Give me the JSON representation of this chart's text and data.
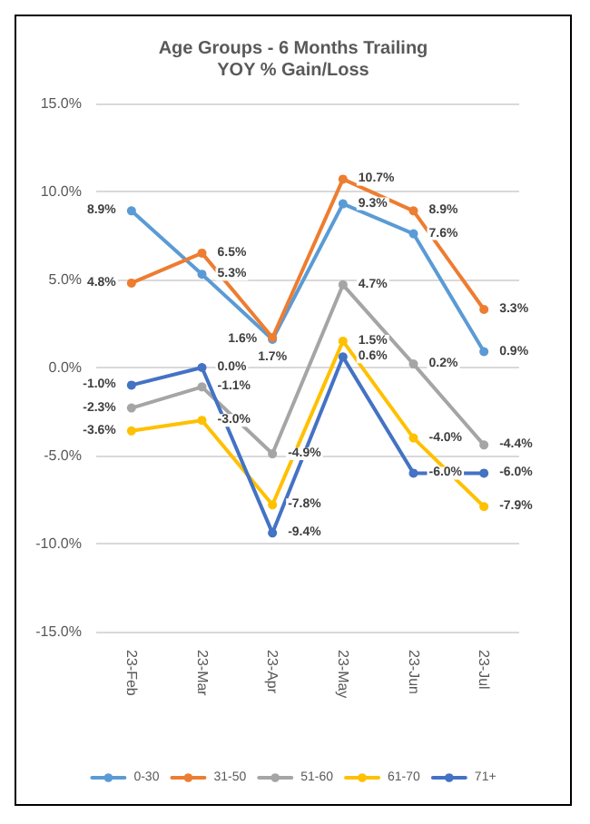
{
  "chart_data": {
    "type": "line",
    "title": "Age Groups - 6 Months Trailing",
    "subtitle": "YOY % Gain/Loss",
    "categories": [
      "23-Feb",
      "23-Mar",
      "23-Apr",
      "23-May",
      "23-Jun",
      "23-Jul"
    ],
    "series": [
      {
        "name": "0-30",
        "color": "#5b9bd5",
        "values": [
          8.9,
          5.3,
          1.6,
          9.3,
          7.6,
          0.9
        ],
        "value_labels": [
          "8.9%",
          "5.3%",
          "1.6%",
          "9.3%",
          "7.6%",
          "0.9%"
        ]
      },
      {
        "name": "31-50",
        "color": "#ed7d31",
        "values": [
          4.8,
          6.5,
          1.7,
          10.7,
          8.9,
          3.3
        ],
        "value_labels": [
          "4.8%",
          "6.5%",
          "1.7%",
          "10.7%",
          "8.9%",
          "3.3%"
        ]
      },
      {
        "name": "51-60",
        "color": "#a5a5a5",
        "values": [
          -2.3,
          -1.1,
          -4.9,
          4.7,
          0.2,
          -4.4
        ],
        "value_labels": [
          "-2.3%",
          "-1.1%",
          "-4.9%",
          "4.7%",
          "0.2%",
          "-4.4%"
        ]
      },
      {
        "name": "61-70",
        "color": "#ffc000",
        "values": [
          -3.6,
          -3.0,
          -7.8,
          1.5,
          -4.0,
          -7.9
        ],
        "value_labels": [
          "-3.6%",
          "-3.0%",
          "-7.8%",
          "1.5%",
          "-4.0%",
          "-7.9%"
        ]
      },
      {
        "name": "71+",
        "color": "#4472c4",
        "values": [
          -1.0,
          0.0,
          -9.4,
          0.6,
          -6.0,
          -6.0
        ],
        "value_labels": [
          "-1.0%",
          "0.0%",
          "-9.4%",
          "0.6%",
          "-6.0%",
          "-6.0%"
        ]
      }
    ],
    "ylim": [
      -15,
      15
    ],
    "yticks": [
      {
        "value": -15,
        "label": "-15.0%"
      },
      {
        "value": -10,
        "label": "-10.0%"
      },
      {
        "value": -5,
        "label": "-5.0%"
      },
      {
        "value": 0,
        "label": "0.0%"
      },
      {
        "value": 5,
        "label": "5.0%"
      },
      {
        "value": 10,
        "label": "10.0%"
      },
      {
        "value": 15,
        "label": "15.0%"
      }
    ],
    "grid": "y",
    "legend": "bottom",
    "marker": "circle",
    "line_style": "solid"
  }
}
